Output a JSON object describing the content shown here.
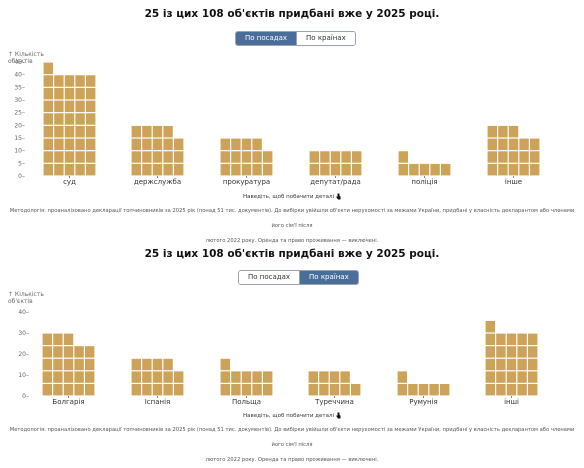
{
  "panels": [
    {
      "title": "25 із цих 108 об'єктів придбані вже у 2025 році.",
      "toggle": {
        "options": [
          "По посадах",
          "По країнах"
        ],
        "active": 0
      },
      "ylabel_line1": "↑ Кількість",
      "ylabel_line2": "об'єктів",
      "hint": "Наведіть, щоб побачити деталі",
      "methodology_line1": "Методологія: проаналізовано декларації топчиновників за 2025 рік (понад 51 тис. документів). До вибірки увійшли об'єкти нерухомості за межами України, придбані у власність декларантом або членами його сім'ї після",
      "methodology_line2": "лютого 2022 року. Оренда та право проживання — виключені."
    },
    {
      "title": "25 із цих 108 об'єктів придбані вже у 2025 році.",
      "toggle": {
        "options": [
          "По посадах",
          "По країнах"
        ],
        "active": 1
      },
      "ylabel_line1": "↑ Кількість",
      "ylabel_line2": "об'єктів",
      "hint": "Наведіть, щоб побачити деталі",
      "methodology_line1": "Методологія: проаналізовано декларації топчиновників за 2025 рік (понад 51 тис. документів). До вибірки увійшли об'єкти нерухомості за межами України, придбані у власність декларантом або членами його сім'ї після",
      "methodology_line2": "лютого 2022 року. Оренда та право проживання — виключені."
    }
  ],
  "chart_data": [
    {
      "type": "bar",
      "title": "25 із цих 108 об'єктів придбані вже у 2025 році.",
      "ylabel": "Кількість об'єктів",
      "yticks": [
        0,
        5,
        10,
        15,
        20,
        25,
        30,
        35,
        40,
        45
      ],
      "ylim": [
        0,
        45
      ],
      "categories": [
        "суд",
        "держслужба",
        "прокуратура",
        "депутат/рада",
        "поліція",
        "інше"
      ],
      "columns": [
        [
          45,
          40,
          40,
          40,
          40
        ],
        [
          20,
          20,
          20,
          20,
          15
        ],
        [
          15,
          15,
          15,
          15,
          10
        ],
        [
          10,
          10,
          10,
          10,
          10
        ],
        [
          10,
          5,
          5,
          5,
          5
        ],
        [
          20,
          20,
          20,
          15,
          15
        ]
      ],
      "color": "#cda35a"
    },
    {
      "type": "bar",
      "title": "25 із цих 108 об'єктів придбані вже у 2025 році.",
      "ylabel": "Кількість об'єктів",
      "yticks": [
        0,
        10,
        20,
        30,
        40
      ],
      "ylim": [
        0,
        40
      ],
      "categories": [
        "Болгарія",
        "Іспанія",
        "Польща",
        "Туреччина",
        "Румунія",
        "інші"
      ],
      "columns": [
        [
          30,
          30,
          30,
          25,
          25
        ],
        [
          18,
          18,
          18,
          18,
          12
        ],
        [
          18,
          12,
          12,
          12,
          12
        ],
        [
          12,
          12,
          12,
          12,
          6
        ],
        [
          12,
          6,
          6,
          6,
          6
        ],
        [
          36,
          30,
          30,
          30,
          30
        ]
      ],
      "color": "#cda35a"
    }
  ]
}
